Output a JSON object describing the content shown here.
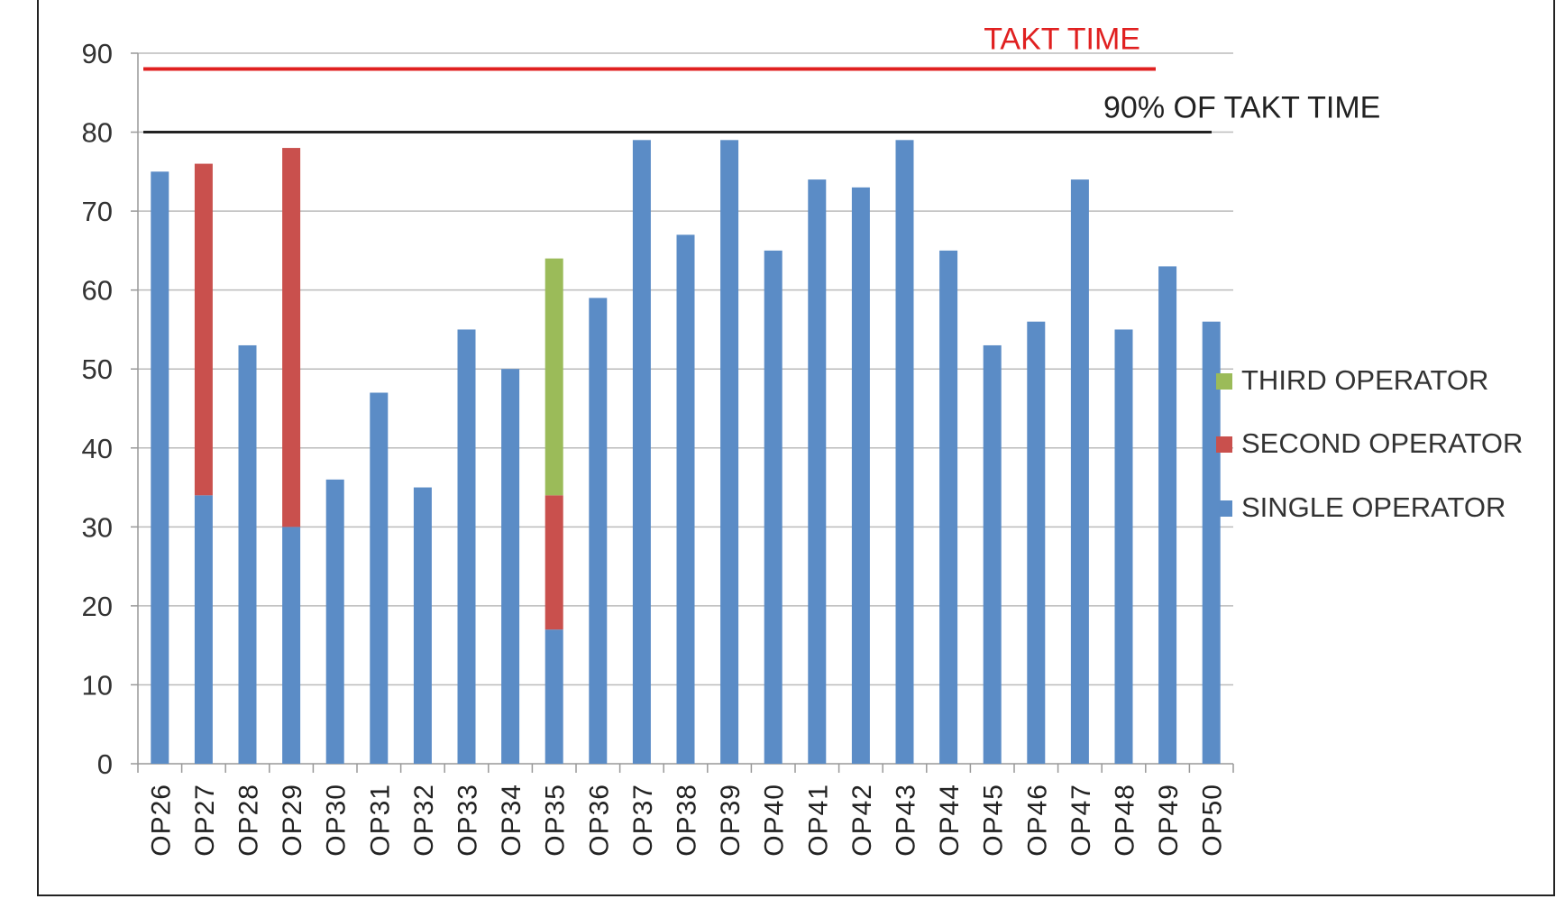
{
  "chart_data": {
    "type": "bar",
    "stacked": true,
    "title": "",
    "xlabel": "",
    "ylabel": "",
    "ylim": [
      0,
      90
    ],
    "yticks": [
      0,
      10,
      20,
      30,
      40,
      50,
      60,
      70,
      80,
      90
    ],
    "grid": true,
    "legend_placement": "right",
    "categories": [
      "OP26",
      "OP27",
      "OP28",
      "OP29",
      "OP30",
      "OP31",
      "OP32",
      "OP33",
      "OP34",
      "OP35",
      "OP36",
      "OP37",
      "OP38",
      "OP39",
      "OP40",
      "OP41",
      "OP42",
      "OP43",
      "OP44",
      "OP45",
      "OP46",
      "OP47",
      "OP48",
      "OP49",
      "OP50"
    ],
    "series": [
      {
        "name": "SINGLE OPERATOR",
        "color": "#5b8cc6",
        "values": [
          75,
          34,
          53,
          30,
          36,
          47,
          35,
          55,
          50,
          17,
          59,
          79,
          67,
          79,
          65,
          74,
          73,
          79,
          65,
          53,
          56,
          74,
          55,
          63,
          56
        ]
      },
      {
        "name": "SECOND OPERATOR",
        "color": "#c9504d",
        "values": [
          0,
          42,
          0,
          48,
          0,
          0,
          0,
          0,
          0,
          17,
          0,
          0,
          0,
          0,
          0,
          0,
          0,
          0,
          0,
          0,
          0,
          0,
          0,
          0,
          0
        ]
      },
      {
        "name": "THIRD OPERATOR",
        "color": "#9bbb59",
        "values": [
          0,
          0,
          0,
          0,
          0,
          0,
          0,
          0,
          0,
          30,
          0,
          0,
          0,
          0,
          0,
          0,
          0,
          0,
          0,
          0,
          0,
          0,
          0,
          0,
          0
        ]
      }
    ],
    "reference_lines": [
      {
        "label": "TAKT TIME",
        "value": 88,
        "color": "#e02020"
      },
      {
        "label": "90% OF TAKT TIME",
        "value": 80,
        "color": "#222222"
      }
    ]
  }
}
